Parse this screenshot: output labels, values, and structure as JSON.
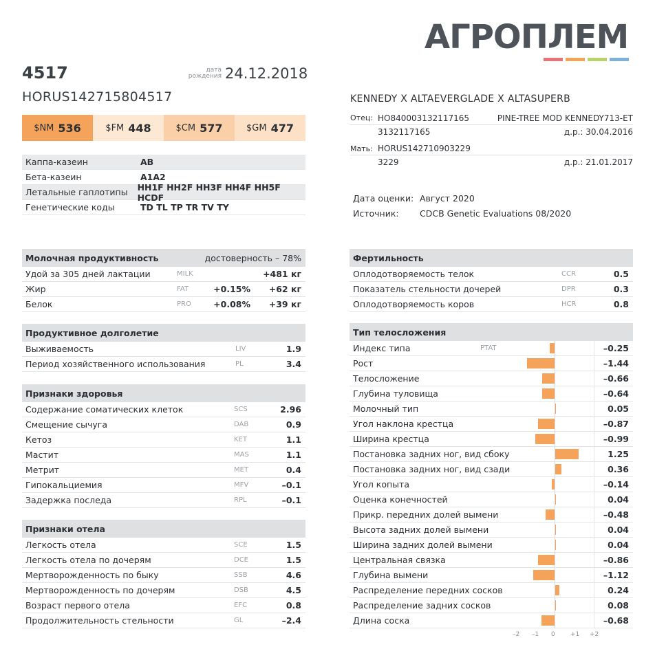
{
  "brand": {
    "logo": "АГРОПЛЕМ",
    "stripes": [
      "#e9737a",
      "#f5a35a",
      "#b8d36a",
      "#7fb0d8"
    ]
  },
  "animal": {
    "id": "4517",
    "dob_label1": "дата",
    "dob_label2": "рождения",
    "dob": "24.12.2018",
    "registration": "HORUS142715804517"
  },
  "indexes": [
    {
      "name": "$NM",
      "value": "536",
      "bg": "#f5a35a"
    },
    {
      "name": "$FM",
      "value": "448",
      "bg": "#fde8d4"
    },
    {
      "name": "$CM",
      "value": "577",
      "bg": "#fbd0a8"
    },
    {
      "name": "$GM",
      "value": "477",
      "bg": "#fde1c6"
    }
  ],
  "genetics": [
    {
      "label": "Каппа-казеин",
      "value": "AB"
    },
    {
      "label": "Бета-казеин",
      "value": "A1A2"
    },
    {
      "label": "Летальные гаплотипы",
      "value": "HH1F HH2F HH3F HH4F HH5F HCDF"
    },
    {
      "label": "Генетические коды",
      "value": "TD TL TP TR TV TY"
    }
  ],
  "pedigree": {
    "title": "KENNEDY X ALTAEVERGLADE X ALTASUPERB",
    "sire_label": "Отец:",
    "sire_reg": "HO840003132117165",
    "sire_name": "PINE-TREE MOD KENNEDY713-ET",
    "sire_num": "3132117165",
    "sire_dob": "д.р.: 30.04.2016",
    "dam_label": "Мать:",
    "dam_reg": "HORUS142710903229",
    "dam_num": "3229",
    "dam_dob": "д.р.: 21.01.2017"
  },
  "evaluation": {
    "date_label": "Дата оценки:",
    "date": "Август 2020",
    "source_label": "Источник:",
    "source": "CDCB Genetic Evaluations 08/2020"
  },
  "milk": {
    "title": "Молочная продуктивность",
    "reliability": "достоверность – 78%",
    "rows": [
      {
        "name": "Удой за 305 дней лактации",
        "code": "MILK",
        "pct": "",
        "value": "+481 кг"
      },
      {
        "name": "Жир",
        "code": "FAT",
        "pct": "+0.15%",
        "value": "+62 кг"
      },
      {
        "name": "Белок",
        "code": "PRO",
        "pct": "+0.08%",
        "value": "+39 кг"
      }
    ]
  },
  "longevity": {
    "title": "Продуктивное долголетие",
    "rows": [
      {
        "name": "Выживаемость",
        "code": "LIV",
        "value": "1.9"
      },
      {
        "name": "Период хозяйственного использования",
        "code": "PL",
        "value": "3.4"
      }
    ]
  },
  "health": {
    "title": "Признаки здоровья",
    "rows": [
      {
        "name": "Содержание соматических клеток",
        "code": "SCS",
        "value": "2.96"
      },
      {
        "name": "Смещение сычуга",
        "code": "DAB",
        "value": "0.9"
      },
      {
        "name": "Кетоз",
        "code": "KET",
        "value": "1.1"
      },
      {
        "name": "Мастит",
        "code": "MAS",
        "value": "1.1"
      },
      {
        "name": "Метрит",
        "code": "MET",
        "value": "0.4"
      },
      {
        "name": "Гипокальциемия",
        "code": "MFV",
        "value": "–0.1"
      },
      {
        "name": "Задержка последа",
        "code": "RPL",
        "value": "–0.1"
      }
    ]
  },
  "calving": {
    "title": "Признаки отела",
    "rows": [
      {
        "name": "Легкость отела",
        "code": "SCE",
        "value": "1.5"
      },
      {
        "name": "Легкость отела по дочерям",
        "code": "DCE",
        "value": "1.5"
      },
      {
        "name": "Мертворожденность по быку",
        "code": "SSB",
        "value": "4.6"
      },
      {
        "name": "Мертворожденность по дочерям",
        "code": "DSB",
        "value": "4.5"
      },
      {
        "name": "Возраст первого отела",
        "code": "EFC",
        "value": "0.8"
      },
      {
        "name": "Продолжительность стельности",
        "code": "GL",
        "value": "–2.4"
      }
    ]
  },
  "fertility": {
    "title": "Фертильность",
    "rows": [
      {
        "name": "Оплодотворяемость телок",
        "code": "CCR",
        "value": "0.5"
      },
      {
        "name": "Показатель стельности дочерей",
        "code": "DPR",
        "value": "0.3"
      },
      {
        "name": "Оплодотворяемость коров",
        "code": "HCR",
        "value": "0.8"
      }
    ]
  },
  "conformation": {
    "title": "Тип телосложения",
    "axis_ticks": [
      "–2",
      "–1",
      "0",
      "+1",
      "+2"
    ],
    "bar_color": "#f5a35a",
    "rows": [
      {
        "name": "Индекс типа",
        "code": "PTAT",
        "value": -0.25,
        "label": "–0.25"
      },
      {
        "name": "Рост",
        "code": "",
        "value": -1.44,
        "label": "–1.44"
      },
      {
        "name": "Телосложение",
        "code": "",
        "value": -0.66,
        "label": "–0.66"
      },
      {
        "name": "Глубина туловища",
        "code": "",
        "value": -0.64,
        "label": "–0.64"
      },
      {
        "name": "Молочный тип",
        "code": "",
        "value": 0.05,
        "label": "0.05"
      },
      {
        "name": "Угол наклона крестца",
        "code": "",
        "value": -0.87,
        "label": "–0.87"
      },
      {
        "name": "Ширина крестца",
        "code": "",
        "value": -0.99,
        "label": "–0.99"
      },
      {
        "name": "Постановка задних ног, вид сбоку",
        "code": "",
        "value": 1.25,
        "label": "1.25"
      },
      {
        "name": "Постановка задних ног, вид сзади",
        "code": "",
        "value": 0.36,
        "label": "0.36"
      },
      {
        "name": "Угол копыта",
        "code": "",
        "value": -0.14,
        "label": "–0.14"
      },
      {
        "name": "Оценка конечностей",
        "code": "",
        "value": 0.04,
        "label": "0.04"
      },
      {
        "name": "Прикр. передних долей вымени",
        "code": "",
        "value": -0.48,
        "label": "–0.48"
      },
      {
        "name": "Высота задних долей вымени",
        "code": "",
        "value": 0.04,
        "label": "0.04"
      },
      {
        "name": "Ширина задних долей вымени",
        "code": "",
        "value": 0.04,
        "label": "0.04"
      },
      {
        "name": "Центральная связка",
        "code": "",
        "value": -0.86,
        "label": "–0.86"
      },
      {
        "name": "Глубина вымени",
        "code": "",
        "value": -1.12,
        "label": "–1.12"
      },
      {
        "name": "Распределение передних сосков",
        "code": "",
        "value": 0.24,
        "label": "0.24"
      },
      {
        "name": "Распределение задних сосков",
        "code": "",
        "value": 0.08,
        "label": "0.08"
      },
      {
        "name": "Длина соска",
        "code": "",
        "value": -0.68,
        "label": "–0.68"
      }
    ]
  }
}
